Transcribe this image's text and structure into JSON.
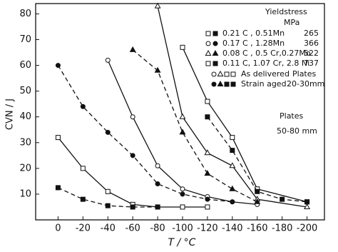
{
  "chart_data": {
    "type": "line",
    "x_label": "T / °C",
    "y_label": "CVN / J",
    "xlim": [
      18,
      -214
    ],
    "ylim": [
      0,
      84
    ],
    "xticks": [
      0,
      -20,
      -40,
      -60,
      -80,
      -100,
      -120,
      -140,
      -160,
      -180,
      -200
    ],
    "yticks": [
      10,
      20,
      30,
      40,
      50,
      60,
      70,
      80
    ],
    "legend_title": "Yieldstress",
    "legend_unit": "MPa",
    "conditions": [
      "As delivered",
      "Strain aged"
    ],
    "plate_notes": [
      "Plates",
      "20-30mm",
      "Plates",
      "50-80 mm"
    ],
    "series": [
      {
        "name": "0.21 C , 0.51Mn",
        "yield_stress": 265,
        "marker": "square",
        "delivered": {
          "x": [
            0,
            -20,
            -40,
            -60,
            -80,
            -100,
            -120
          ],
          "values": [
            32,
            20,
            11,
            6,
            5,
            5,
            5
          ]
        },
        "aged": {
          "x": [
            0,
            -20,
            -40,
            -60,
            -80
          ],
          "values": [
            12.5,
            8,
            5.5,
            5,
            5
          ]
        }
      },
      {
        "name": "0.17 C , 1.28Mn",
        "yield_stress": 366,
        "marker": "circle",
        "delivered": {
          "x": [
            -40,
            -60,
            -80,
            -100,
            -120,
            -140,
            -160
          ],
          "values": [
            62,
            40,
            21,
            12,
            9,
            7,
            6
          ]
        },
        "aged": {
          "x": [
            0,
            -20,
            -40,
            -60,
            -80,
            -100,
            -120,
            -140
          ],
          "values": [
            60,
            44,
            34,
            25,
            14,
            10,
            8,
            7
          ]
        }
      },
      {
        "name": "0.08 C , 0.5 Cr,0.27Mo",
        "yield_stress": 522,
        "marker": "triangle",
        "delivered": {
          "x": [
            -80,
            -100,
            -120,
            -140,
            -160,
            -200
          ],
          "values": [
            83,
            40,
            26,
            21,
            8,
            5
          ]
        },
        "aged": {
          "x": [
            -60,
            -80,
            -100,
            -120,
            -140,
            -160
          ],
          "values": [
            66,
            58,
            34,
            18,
            12,
            7
          ]
        }
      },
      {
        "name": "0.11 C, 1.07 Cr, 2.8 Ni",
        "yield_stress": 737,
        "marker": "square",
        "delivered": {
          "x": [
            -100,
            -120,
            -140,
            -160,
            -200
          ],
          "values": [
            67,
            46,
            32,
            12,
            7
          ]
        },
        "aged": {
          "x": [
            -120,
            -140,
            -160,
            -180,
            -200
          ],
          "values": [
            40,
            27,
            11,
            8,
            7
          ]
        }
      }
    ]
  }
}
